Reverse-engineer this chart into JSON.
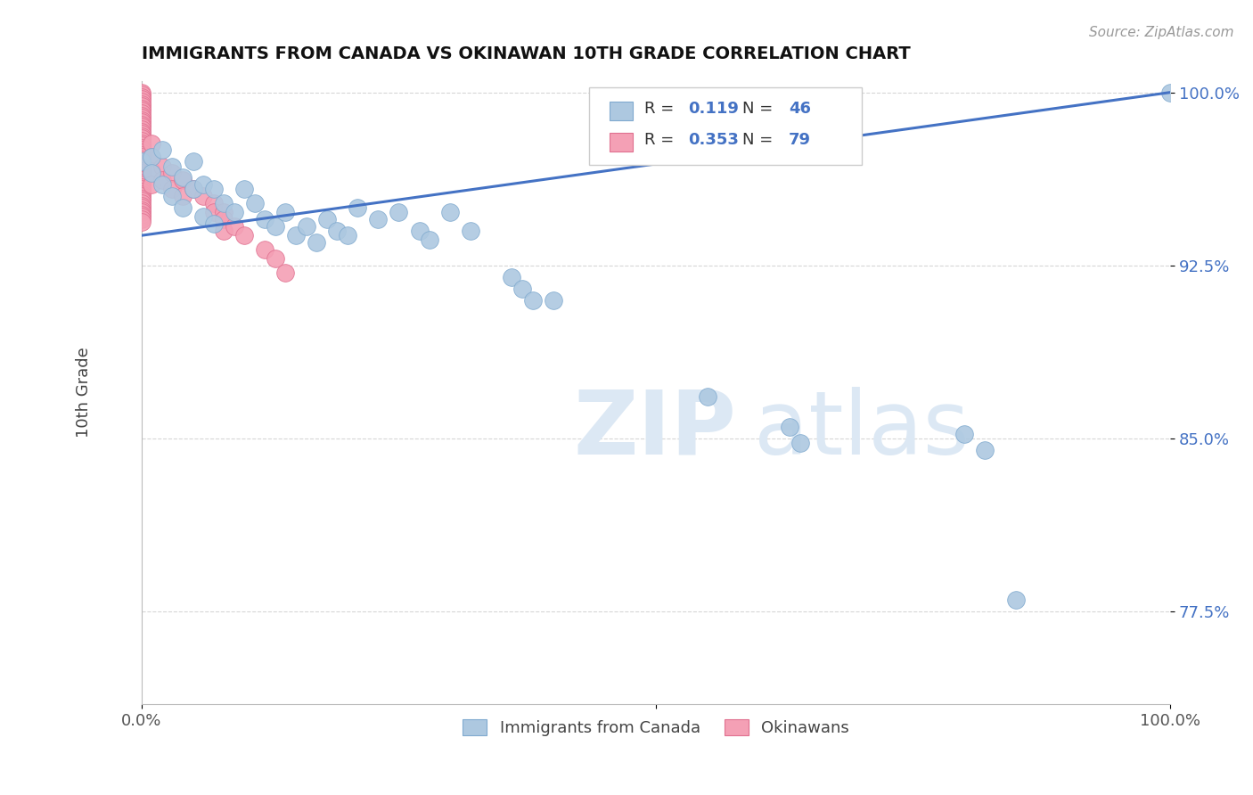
{
  "title": "IMMIGRANTS FROM CANADA VS OKINAWAN 10TH GRADE CORRELATION CHART",
  "source_text": "Source: ZipAtlas.com",
  "ylabel": "10th Grade",
  "legend_labels": [
    "Immigrants from Canada",
    "Okinawans"
  ],
  "r_blue": 0.119,
  "n_blue": 46,
  "r_pink": 0.353,
  "n_pink": 79,
  "xlim": [
    0.0,
    1.0
  ],
  "ylim": [
    0.735,
    1.005
  ],
  "yticks": [
    0.775,
    0.85,
    0.925,
    1.0
  ],
  "yticklabels": [
    "77.5%",
    "85.0%",
    "92.5%",
    "100.0%"
  ],
  "blue_color": "#adc8e0",
  "pink_color": "#f4a0b5",
  "trend_color": "#4472c4",
  "watermark_color": "#dce8f4",
  "background_color": "#ffffff",
  "blue_x": [
    0.0,
    0.01,
    0.01,
    0.02,
    0.02,
    0.03,
    0.03,
    0.04,
    0.04,
    0.05,
    0.05,
    0.06,
    0.06,
    0.07,
    0.07,
    0.08,
    0.09,
    0.1,
    0.11,
    0.12,
    0.13,
    0.14,
    0.15,
    0.16,
    0.17,
    0.18,
    0.19,
    0.2,
    0.21,
    0.23,
    0.25,
    0.27,
    0.28,
    0.3,
    0.32,
    0.36,
    0.37,
    0.38,
    0.4,
    0.55,
    0.63,
    0.64,
    0.8,
    0.82,
    0.85,
    1.0
  ],
  "blue_y": [
    0.97,
    0.972,
    0.965,
    0.975,
    0.96,
    0.968,
    0.955,
    0.963,
    0.95,
    0.97,
    0.958,
    0.96,
    0.946,
    0.958,
    0.943,
    0.952,
    0.948,
    0.958,
    0.952,
    0.945,
    0.942,
    0.948,
    0.938,
    0.942,
    0.935,
    0.945,
    0.94,
    0.938,
    0.95,
    0.945,
    0.948,
    0.94,
    0.936,
    0.948,
    0.94,
    0.92,
    0.915,
    0.91,
    0.91,
    0.868,
    0.855,
    0.848,
    0.852,
    0.845,
    0.78,
    1.0
  ],
  "pink_x": [
    0.0,
    0.0,
    0.0,
    0.0,
    0.0,
    0.0,
    0.0,
    0.0,
    0.0,
    0.0,
    0.0,
    0.0,
    0.0,
    0.0,
    0.0,
    0.0,
    0.0,
    0.0,
    0.0,
    0.0,
    0.0,
    0.0,
    0.0,
    0.0,
    0.0,
    0.0,
    0.0,
    0.0,
    0.0,
    0.0,
    0.0,
    0.0,
    0.0,
    0.0,
    0.0,
    0.0,
    0.0,
    0.0,
    0.0,
    0.0,
    0.0,
    0.0,
    0.0,
    0.0,
    0.0,
    0.0,
    0.0,
    0.0,
    0.0,
    0.0,
    0.0,
    0.0,
    0.0,
    0.0,
    0.0,
    0.0,
    0.0,
    0.01,
    0.01,
    0.01,
    0.01,
    0.02,
    0.02,
    0.03,
    0.03,
    0.04,
    0.04,
    0.05,
    0.06,
    0.07,
    0.07,
    0.08,
    0.08,
    0.08,
    0.09,
    0.1,
    0.12,
    0.13,
    0.14
  ],
  "pink_y": [
    1.0,
    0.999,
    0.998,
    0.997,
    0.996,
    0.995,
    0.994,
    0.993,
    0.992,
    0.991,
    0.99,
    0.989,
    0.988,
    0.987,
    0.986,
    0.985,
    0.984,
    0.983,
    0.982,
    0.981,
    0.98,
    0.979,
    0.978,
    0.977,
    0.976,
    0.975,
    0.974,
    0.973,
    0.972,
    0.971,
    0.97,
    0.969,
    0.968,
    0.967,
    0.966,
    0.965,
    0.964,
    0.963,
    0.962,
    0.961,
    0.96,
    0.959,
    0.958,
    0.957,
    0.956,
    0.955,
    0.954,
    0.953,
    0.952,
    0.951,
    0.95,
    0.949,
    0.948,
    0.947,
    0.946,
    0.945,
    0.944,
    0.978,
    0.972,
    0.966,
    0.96,
    0.968,
    0.962,
    0.965,
    0.958,
    0.962,
    0.955,
    0.958,
    0.955,
    0.952,
    0.948,
    0.948,
    0.945,
    0.94,
    0.942,
    0.938,
    0.932,
    0.928,
    0.922
  ],
  "trend_x_start": 0.0,
  "trend_x_end": 1.0,
  "trend_y_start": 0.938,
  "trend_y_end": 1.0
}
